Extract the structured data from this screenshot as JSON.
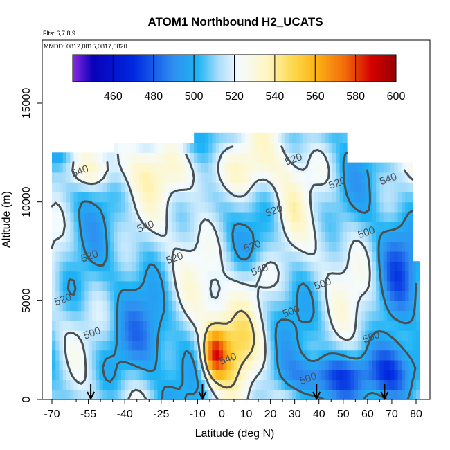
{
  "chart_data": {
    "type": "heatmap",
    "title": "ATOM1 Northbound H2_UCATS",
    "note_flights": "Flts: 6,7,8,9",
    "note_dates": "MMDD: 0812,0815,0817,0820",
    "xlabel": "Latitude (deg N)",
    "ylabel": "Altitude (m)",
    "xlim": [
      -73,
      84
    ],
    "ylim": [
      0,
      17500
    ],
    "x_ticks": [
      -70,
      -55,
      -40,
      -25,
      -10,
      0,
      10,
      20,
      30,
      40,
      50,
      60,
      70,
      80
    ],
    "x_minor_ticks": [
      -65,
      -60,
      -50,
      -45,
      -35,
      -30,
      -20,
      -15,
      -5,
      5,
      15,
      25,
      35,
      45,
      55,
      65,
      75
    ],
    "y_ticks": [
      0,
      5000,
      10000,
      15000
    ],
    "colorbar": {
      "range": [
        440,
        600
      ],
      "ticks": [
        460,
        480,
        500,
        520,
        540,
        560,
        580,
        600
      ],
      "color_stops": [
        {
          "value": 440,
          "color": "#8a2be2"
        },
        {
          "value": 450,
          "color": "#0a00b8"
        },
        {
          "value": 470,
          "color": "#0028e0"
        },
        {
          "value": 490,
          "color": "#2f8ff0"
        },
        {
          "value": 502,
          "color": "#1eb4f5"
        },
        {
          "value": 512,
          "color": "#a7dcfa"
        },
        {
          "value": 522,
          "color": "#f4fbff"
        },
        {
          "value": 536,
          "color": "#fff6c4"
        },
        {
          "value": 548,
          "color": "#fddb55"
        },
        {
          "value": 560,
          "color": "#fdb515"
        },
        {
          "value": 575,
          "color": "#f2690a"
        },
        {
          "value": 588,
          "color": "#d40000"
        },
        {
          "value": 600,
          "color": "#960000"
        }
      ]
    },
    "contour_levels": [
      500,
      520,
      540
    ],
    "contour_labels": [
      {
        "text": "540",
        "lat": -58,
        "alt": 11400
      },
      {
        "text": "520",
        "lat": 30,
        "alt": 12000
      },
      {
        "text": "520",
        "lat": 48,
        "alt": 10800
      },
      {
        "text": "540",
        "lat": 69,
        "alt": 11000
      },
      {
        "text": "520",
        "lat": 22,
        "alt": 9400
      },
      {
        "text": "540",
        "lat": -31,
        "alt": 8600
      },
      {
        "text": "500",
        "lat": 60,
        "alt": 8300
      },
      {
        "text": "520",
        "lat": -54,
        "alt": 7100
      },
      {
        "text": "520",
        "lat": -19,
        "alt": 7000
      },
      {
        "text": "520",
        "lat": 13,
        "alt": 7600
      },
      {
        "text": "540",
        "lat": 16,
        "alt": 6400
      },
      {
        "text": "500",
        "lat": 42,
        "alt": 5700
      },
      {
        "text": "520",
        "lat": -65,
        "alt": 4900
      },
      {
        "text": "500",
        "lat": 29,
        "alt": 4300
      },
      {
        "text": "500",
        "lat": -53,
        "alt": 3200
      },
      {
        "text": "500",
        "lat": 62,
        "alt": 3000
      },
      {
        "text": "540",
        "lat": 3,
        "alt": 1900
      },
      {
        "text": "500",
        "lat": 36,
        "alt": 900
      }
    ],
    "profile_arrows_lat": [
      -54,
      -8,
      39,
      67
    ]
  }
}
